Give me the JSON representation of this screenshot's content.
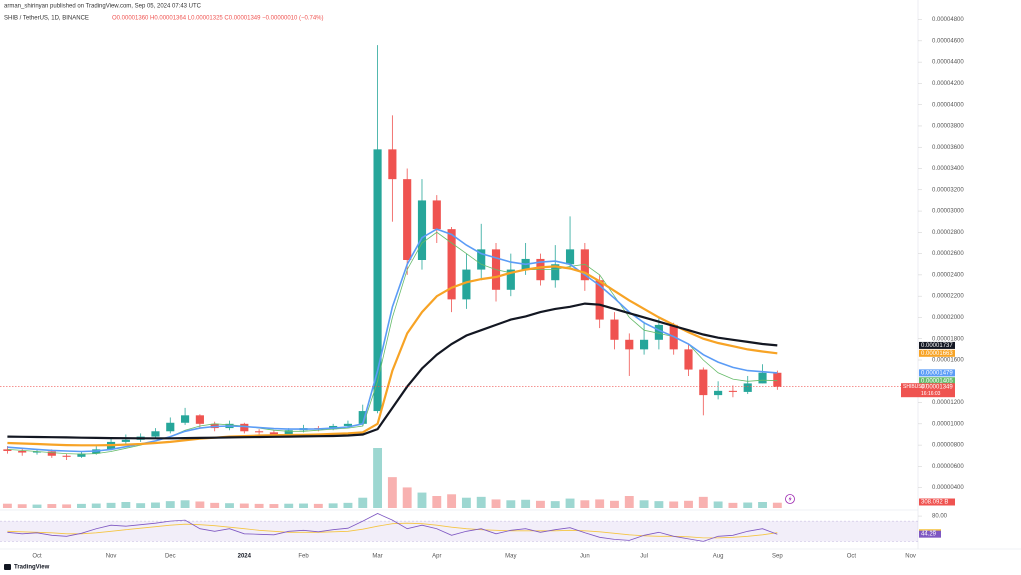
{
  "header": {
    "published": "arman_shirinyan published on TradingView.com, Sep 05, 2024 07:43 UTC",
    "symbol": "SHIB / TetherUS, 1D, BINANCE",
    "ohlc": "O0.00001360 H0.00001364 L0.00001325 C0.00001349 −0.00000010 (−0.74%)",
    "symbol_tag": "SHIBUSDT",
    "countdown": "16:16:03",
    "brand": "TradingView"
  },
  "chart_data": [
    {
      "type": "candlestick",
      "up_color": "#26a69a",
      "down_color": "#ef5350",
      "categories": [
        null,
        null,
        "Oct",
        null,
        null,
        null,
        null,
        "Nov",
        null,
        null,
        null,
        "Dec",
        null,
        null,
        null,
        null,
        "2024",
        null,
        null,
        null,
        "Feb",
        null,
        null,
        null,
        null,
        "Mar",
        null,
        null,
        null,
        "Apr",
        null,
        null,
        null,
        null,
        "May",
        null,
        null,
        null,
        null,
        "Jun",
        null,
        null,
        null,
        "Jul",
        null,
        null,
        null,
        null,
        "Aug",
        null,
        null,
        null,
        "Sep",
        null,
        null,
        null,
        null,
        "Oct",
        null,
        null,
        null,
        "Nov"
      ],
      "open": [
        7.6e-06,
        7.45e-06,
        7.3e-06,
        7.4e-06,
        7e-06,
        6.9e-06,
        7.2e-06,
        7.6e-06,
        8.3e-06,
        8.5e-06,
        8.8e-06,
        9.3e-06,
        1.01e-05,
        1.08e-05,
        1e-05,
        9.6e-06,
        1e-05,
        9.3e-06,
        9.2e-06,
        9e-06,
        9.4e-06,
        9.6e-06,
        9.5e-06,
        9.8e-06,
        1e-05,
        1.12e-05,
        3.58e-05,
        3.3e-05,
        2.54e-05,
        3.1e-05,
        2.83e-05,
        2.17e-05,
        2.45e-05,
        2.64e-05,
        2.26e-05,
        2.45e-05,
        2.55e-05,
        2.35e-05,
        2.5e-05,
        2.64e-05,
        2.35e-05,
        1.98e-05,
        1.79e-05,
        1.7e-05,
        1.79e-05,
        1.93e-05,
        1.7e-05,
        1.51e-05,
        1.27e-05,
        1.31e-05,
        1.3e-05,
        1.38e-05,
        1.48e-05,
        null,
        null,
        null,
        null,
        null,
        null,
        null,
        null,
        null
      ],
      "high": [
        7.9e-06,
        7.7e-06,
        7.6e-06,
        7.6e-06,
        7.2e-06,
        7.4e-06,
        7.9e-06,
        8.6e-06,
        9e-06,
        9.1e-06,
        9.6e-06,
        1.06e-05,
        1.15e-05,
        1.09e-05,
        1.02e-05,
        1.03e-05,
        1.01e-05,
        9.5e-06,
        9.4e-06,
        9.6e-06,
        9.9e-06,
        9.8e-06,
        1e-05,
        1.03e-05,
        1.18e-05,
        4.56e-05,
        3.9e-05,
        3.4e-05,
        3.3e-05,
        3.15e-05,
        2.85e-05,
        2.6e-05,
        2.88e-05,
        2.7e-05,
        2.6e-05,
        2.7e-05,
        2.6e-05,
        2.68e-05,
        2.95e-05,
        2.7e-05,
        2.4e-05,
        2.05e-05,
        1.85e-05,
        1.96e-05,
        2e-05,
        1.95e-05,
        1.75e-05,
        1.53e-05,
        1.4e-05,
        1.36e-05,
        1.45e-05,
        1.56e-05,
        1.5e-05,
        null,
        null,
        null,
        null,
        null,
        null,
        null,
        null,
        null
      ],
      "low": [
        7.2e-06,
        7e-06,
        7.1e-06,
        6.8e-06,
        6.6e-06,
        6.8e-06,
        7.1e-06,
        7.5e-06,
        8.1e-06,
        8.3e-06,
        8.6e-06,
        9.1e-06,
        9.9e-06,
        9.6e-06,
        9.3e-06,
        9.4e-06,
        9.1e-06,
        8.9e-06,
        8.7e-06,
        8.8e-06,
        9.2e-06,
        9.3e-06,
        9.4e-06,
        9.6e-06,
        9.8e-06,
        1.1e-05,
        2.9e-05,
        2.4e-05,
        2.45e-05,
        2.7e-05,
        2.05e-05,
        2.08e-05,
        2.35e-05,
        2.15e-05,
        2.2e-05,
        2.4e-05,
        2.3e-05,
        2.28e-05,
        2.45e-05,
        2.25e-05,
        1.9e-05,
        1.7e-05,
        1.45e-05,
        1.65e-05,
        1.7e-05,
        1.65e-05,
        1.45e-05,
        1.08e-05,
        1.23e-05,
        1.25e-05,
        1.28e-05,
        1.38e-05,
        1.32e-05,
        null,
        null,
        null,
        null,
        null,
        null,
        null,
        null,
        null
      ],
      "close": [
        7.45e-06,
        7.3e-06,
        7.4e-06,
        7e-06,
        6.9e-06,
        7.2e-06,
        7.6e-06,
        8.3e-06,
        8.5e-06,
        8.8e-06,
        9.3e-06,
        1.01e-05,
        1.08e-05,
        1e-05,
        9.6e-06,
        1e-05,
        9.3e-06,
        9.2e-06,
        9e-06,
        9.4e-06,
        9.6e-06,
        9.5e-06,
        9.8e-06,
        1e-05,
        1.12e-05,
        3.58e-05,
        3.3e-05,
        2.54e-05,
        3.1e-05,
        2.83e-05,
        2.17e-05,
        2.45e-05,
        2.64e-05,
        2.26e-05,
        2.45e-05,
        2.55e-05,
        2.35e-05,
        2.5e-05,
        2.64e-05,
        2.35e-05,
        1.98e-05,
        1.79e-05,
        1.7e-05,
        1.79e-05,
        1.93e-05,
        1.7e-05,
        1.51e-05,
        1.27e-05,
        1.31e-05,
        1.3e-05,
        1.38e-05,
        1.48e-05,
        1.349e-05,
        null,
        null,
        null,
        null,
        null,
        null,
        null,
        null,
        null
      ],
      "lines": [
        {
          "color": "#66bb6a",
          "width": 0.8,
          "values": [
            7.6e-06,
            7.5e-06,
            7.4e-06,
            7.3e-06,
            7.2e-06,
            7.15e-06,
            7.2e-06,
            7.4e-06,
            7.7e-06,
            8e-06,
            8.4e-06,
            8.8e-06,
            9.4e-06,
            9.8e-06,
            1e-05,
            9.9e-06,
            9.8e-06,
            9.6e-06,
            9.4e-06,
            9.3e-06,
            9.3e-06,
            9.4e-06,
            9.5e-06,
            9.6e-06,
            9.8e-06,
            1.4e-05,
            2e-05,
            2.45e-05,
            2.7e-05,
            2.8e-05,
            2.7e-05,
            2.6e-05,
            2.5e-05,
            2.45e-05,
            2.42e-05,
            2.45e-05,
            2.45e-05,
            2.45e-05,
            2.48e-05,
            2.5e-05,
            2.4e-05,
            2.2e-05,
            2e-05,
            1.88e-05,
            1.85e-05,
            1.82e-05,
            1.75e-05,
            1.6e-05,
            1.48e-05,
            1.42e-05,
            1.4e-05,
            1.41e-05,
            1.405e-05,
            null,
            null,
            null,
            null,
            null,
            null,
            null,
            null,
            null
          ]
        },
        {
          "color": "#5b9cf6",
          "width": 1.6,
          "values": [
            7.8e-06,
            7.7e-06,
            7.6e-06,
            7.5e-06,
            7.45e-06,
            7.4e-06,
            7.45e-06,
            7.6e-06,
            7.85e-06,
            8.1e-06,
            8.4e-06,
            8.8e-06,
            9.3e-06,
            9.6e-06,
            9.75e-06,
            9.8e-06,
            9.75e-06,
            9.65e-06,
            9.55e-06,
            9.5e-06,
            9.5e-06,
            9.52e-06,
            9.6e-06,
            9.7e-06,
            1e-05,
            1.5e-05,
            2.1e-05,
            2.5e-05,
            2.75e-05,
            2.83e-05,
            2.78e-05,
            2.68e-05,
            2.6e-05,
            2.56e-05,
            2.52e-05,
            2.5e-05,
            2.52e-05,
            2.53e-05,
            2.5e-05,
            2.4e-05,
            2.3e-05,
            2.18e-05,
            2.05e-05,
            1.95e-05,
            1.88e-05,
            1.82e-05,
            1.75e-05,
            1.65e-05,
            1.58e-05,
            1.53e-05,
            1.5e-05,
            1.49e-05,
            1.479e-05,
            null,
            null,
            null,
            null,
            null,
            null,
            null,
            null,
            null
          ]
        },
        {
          "color": "#f7a325",
          "width": 2.2,
          "values": [
            8.2e-06,
            8.15e-06,
            8.1e-06,
            8.05e-06,
            8e-06,
            7.98e-06,
            7.98e-06,
            8e-06,
            8.05e-06,
            8.1e-06,
            8.2e-06,
            8.3e-06,
            8.45e-06,
            8.6e-06,
            8.7e-06,
            8.8e-06,
            8.85e-06,
            8.9e-06,
            8.93e-06,
            8.95e-06,
            8.97e-06,
            9e-06,
            9.05e-06,
            9.1e-06,
            9.2e-06,
            1e-05,
            1.5e-05,
            1.85e-05,
            2.05e-05,
            2.2e-05,
            2.28e-05,
            2.33e-05,
            2.36e-05,
            2.38e-05,
            2.42e-05,
            2.45e-05,
            2.47e-05,
            2.48e-05,
            2.46e-05,
            2.42e-05,
            2.34e-05,
            2.25e-05,
            2.16e-05,
            2.08e-05,
            2e-05,
            1.93e-05,
            1.86e-05,
            1.8e-05,
            1.76e-05,
            1.73e-05,
            1.7e-05,
            1.68e-05,
            1.663e-05,
            null,
            null,
            null,
            null,
            null,
            null,
            null,
            null,
            null
          ]
        },
        {
          "color": "#131722",
          "width": 2.2,
          "values": [
            8.8e-06,
            8.78e-06,
            8.76e-06,
            8.74e-06,
            8.72e-06,
            8.7e-06,
            8.68e-06,
            8.66e-06,
            8.65e-06,
            8.64e-06,
            8.64e-06,
            8.64e-06,
            8.66e-06,
            8.68e-06,
            8.7e-06,
            8.72e-06,
            8.74e-06,
            8.76e-06,
            8.78e-06,
            8.8e-06,
            8.82e-06,
            8.84e-06,
            8.86e-06,
            8.9e-06,
            9e-06,
            9.5e-06,
            1.15e-05,
            1.35e-05,
            1.52e-05,
            1.65e-05,
            1.75e-05,
            1.83e-05,
            1.88e-05,
            1.93e-05,
            1.98e-05,
            2.01e-05,
            2.05e-05,
            2.08e-05,
            2.1e-05,
            2.13e-05,
            2.12e-05,
            2.08e-05,
            2.04e-05,
            2e-05,
            1.96e-05,
            1.92e-05,
            1.88e-05,
            1.84e-05,
            1.81e-05,
            1.79e-05,
            1.77e-05,
            1.75e-05,
            1.737e-05,
            null,
            null,
            null,
            null,
            null,
            null,
            null,
            null,
            null
          ]
        }
      ],
      "ylim": [
        1.9e-06,
        4.89e-05
      ],
      "yticks": [
        {
          "value": 4e-06,
          "label": "0.00000400"
        },
        {
          "value": 6e-06,
          "label": "0.00000600"
        },
        {
          "value": 8e-06,
          "label": "0.00000800"
        },
        {
          "value": 1e-05,
          "label": "0.00001000"
        },
        {
          "value": 1.2e-05,
          "label": "0.00001200"
        },
        {
          "value": 1.6e-05,
          "label": "0.00001600"
        },
        {
          "value": 1.8e-05,
          "label": "0.00001800"
        },
        {
          "value": 2e-05,
          "label": "0.00002000"
        },
        {
          "value": 2.2e-05,
          "label": "0.00002200"
        },
        {
          "value": 2.4e-05,
          "label": "0.00002400"
        },
        {
          "value": 2.6e-05,
          "label": "0.00002600"
        },
        {
          "value": 2.8e-05,
          "label": "0.00002800"
        },
        {
          "value": 3e-05,
          "label": "0.00003000"
        },
        {
          "value": 3.2e-05,
          "label": "0.00003200"
        },
        {
          "value": 3.4e-05,
          "label": "0.00003400"
        },
        {
          "value": 3.6e-05,
          "label": "0.00003600"
        },
        {
          "value": 3.8e-05,
          "label": "0.00003800"
        },
        {
          "value": 4e-05,
          "label": "0.00004000"
        },
        {
          "value": 4.2e-05,
          "label": "0.00004200"
        },
        {
          "value": 4.4e-05,
          "label": "0.00004400"
        },
        {
          "value": 4.6e-05,
          "label": "0.00004600"
        },
        {
          "value": 4.8e-05,
          "label": "0.00004800"
        }
      ],
      "grid": false
    },
    {
      "type": "bar",
      "values": [
        250,
        220,
        200,
        230,
        210,
        240,
        260,
        300,
        350,
        280,
        320,
        400,
        450,
        380,
        300,
        280,
        260,
        240,
        230,
        250,
        260,
        240,
        270,
        300,
        600,
        3500,
        1800,
        1200,
        900,
        700,
        800,
        600,
        650,
        500,
        450,
        480,
        420,
        400,
        550,
        450,
        500,
        420,
        700,
        450,
        400,
        380,
        420,
        650,
        380,
        300,
        320,
        350,
        308.092,
        null,
        null,
        null,
        null,
        null,
        null,
        null,
        null,
        null
      ],
      "last_label": "308.092 B",
      "label_color": "#ef5350"
    },
    {
      "type": "line",
      "ylim": [
        15,
        90
      ],
      "yticks": [
        {
          "value": 80,
          "label": "80.00"
        }
      ],
      "band": [
        30,
        70
      ],
      "band_color": "rgba(126,87,194,0.10)",
      "series": [
        {
          "color": "#f5c542",
          "values": [
            50,
            49,
            48,
            47,
            45,
            45,
            47,
            50,
            53,
            56,
            59,
            62,
            64,
            63,
            61,
            58,
            55,
            52,
            50,
            48,
            48,
            48,
            49,
            50,
            54,
            60,
            65,
            66,
            65,
            62,
            58,
            55,
            53,
            52,
            51,
            51,
            51,
            51,
            52,
            51,
            49,
            46,
            43,
            41,
            40,
            40,
            39,
            37,
            37,
            38,
            40,
            43,
            47.17,
            null,
            null,
            null,
            null,
            null,
            null,
            null,
            null,
            null
          ]
        },
        {
          "color": "#7e57c2",
          "values": [
            48,
            45,
            47,
            42,
            40,
            46,
            55,
            62,
            60,
            63,
            66,
            70,
            72,
            55,
            50,
            55,
            45,
            44,
            43,
            50,
            52,
            49,
            53,
            56,
            70,
            85,
            72,
            55,
            62,
            55,
            42,
            50,
            55,
            45,
            52,
            55,
            48,
            53,
            57,
            47,
            38,
            34,
            32,
            42,
            48,
            40,
            35,
            30,
            40,
            42,
            50,
            55,
            44.29,
            null,
            null,
            null,
            null,
            null,
            null,
            null,
            null,
            null
          ]
        }
      ]
    }
  ]
}
